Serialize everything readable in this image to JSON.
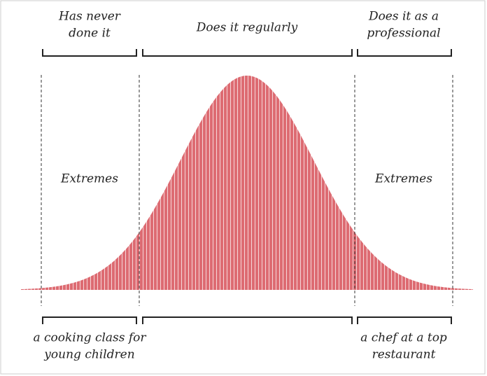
{
  "top_labels": [
    {
      "lines": [
        "Has never",
        "done it"
      ]
    },
    {
      "lines": [
        "Does it regularly"
      ]
    },
    {
      "lines": [
        "Does it as a",
        "professional"
      ]
    }
  ],
  "side_labels": [
    "Extremes",
    "Extremes"
  ],
  "bottom_labels": [
    {
      "lines": [
        "a cooking class for",
        "young children"
      ]
    },
    {
      "lines": [
        "a chef at a top",
        "restaurant"
      ]
    }
  ]
}
